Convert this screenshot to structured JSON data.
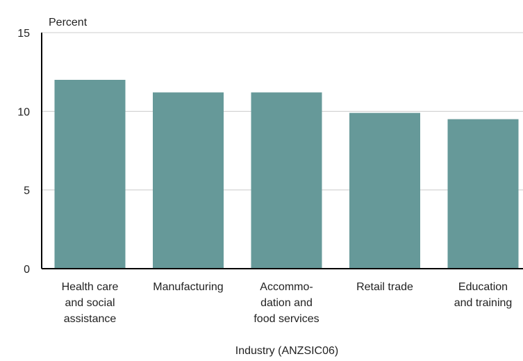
{
  "chart_data": {
    "type": "bar",
    "title": "",
    "ylabel": "Percent",
    "xlabel": "Industry (ANZSIC06)",
    "ylim": [
      0,
      15
    ],
    "yticks": [
      0,
      5,
      10,
      15
    ],
    "grid": true,
    "legend": "none",
    "bar_color": "#669999",
    "categories": [
      [
        "Health care",
        "and social",
        "assistance"
      ],
      [
        "Manufacturing"
      ],
      [
        "Accommo-",
        "dation and",
        "food services"
      ],
      [
        "Retail trade"
      ],
      [
        "Education",
        "and training"
      ]
    ],
    "values": [
      12.0,
      11.2,
      11.2,
      9.9,
      9.5
    ]
  }
}
